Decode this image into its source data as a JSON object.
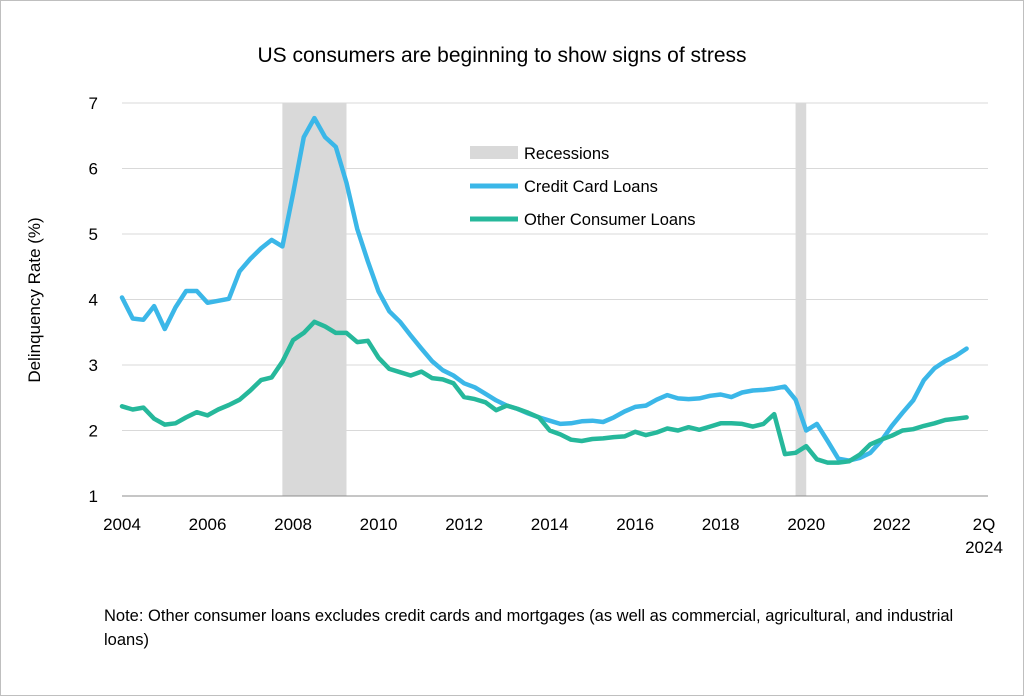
{
  "chart_data": {
    "type": "line",
    "title": "US consumers are beginning to show signs of stress",
    "ylabel": "Delinquency Rate (%)",
    "xlabel": "",
    "ylim": [
      1,
      7
    ],
    "xlim": [
      2004.0,
      2024.25
    ],
    "grid": "horizontal",
    "legend_position": "top-center",
    "yticks": [
      1,
      2,
      3,
      4,
      5,
      6,
      7
    ],
    "xticks": [
      {
        "label": "2004",
        "value": 2004
      },
      {
        "label": "2006",
        "value": 2006
      },
      {
        "label": "2008",
        "value": 2008
      },
      {
        "label": "2010",
        "value": 2010
      },
      {
        "label": "2012",
        "value": 2012
      },
      {
        "label": "2014",
        "value": 2014
      },
      {
        "label": "2016",
        "value": 2016
      },
      {
        "label": "2018",
        "value": 2018
      },
      {
        "label": "2020",
        "value": 2020
      },
      {
        "label": "2022",
        "value": 2022
      }
    ],
    "last_tick": {
      "line1": "2Q",
      "line2": "2024",
      "value": 2024.25
    },
    "recessions": {
      "name": "Recessions",
      "color": "#d9d9d9",
      "periods": [
        [
          2007.75,
          2009.25
        ],
        [
          2019.75,
          2020.0
        ]
      ]
    },
    "series": [
      {
        "name": "Credit Card Loans",
        "color": "#3bb7e8",
        "points": [
          [
            2004.0,
            4.03
          ],
          [
            2004.25,
            3.71
          ],
          [
            2004.5,
            3.69
          ],
          [
            2004.75,
            3.9
          ],
          [
            2005.0,
            3.55
          ],
          [
            2005.25,
            3.88
          ],
          [
            2005.5,
            4.13
          ],
          [
            2005.75,
            4.13
          ],
          [
            2006.0,
            3.95
          ],
          [
            2006.25,
            3.98
          ],
          [
            2006.5,
            4.01
          ],
          [
            2006.75,
            4.43
          ],
          [
            2007.0,
            4.62
          ],
          [
            2007.25,
            4.78
          ],
          [
            2007.5,
            4.91
          ],
          [
            2007.75,
            4.81
          ],
          [
            2008.0,
            5.62
          ],
          [
            2008.25,
            6.48
          ],
          [
            2008.5,
            6.77
          ],
          [
            2008.75,
            6.48
          ],
          [
            2009.0,
            6.33
          ],
          [
            2009.25,
            5.78
          ],
          [
            2009.5,
            5.08
          ],
          [
            2009.75,
            4.58
          ],
          [
            2010.0,
            4.12
          ],
          [
            2010.25,
            3.82
          ],
          [
            2010.5,
            3.66
          ],
          [
            2010.75,
            3.45
          ],
          [
            2011.0,
            3.25
          ],
          [
            2011.25,
            3.06
          ],
          [
            2011.5,
            2.92
          ],
          [
            2011.75,
            2.84
          ],
          [
            2012.0,
            2.72
          ],
          [
            2012.25,
            2.66
          ],
          [
            2012.5,
            2.56
          ],
          [
            2012.75,
            2.46
          ],
          [
            2013.0,
            2.38
          ],
          [
            2013.25,
            2.33
          ],
          [
            2013.5,
            2.26
          ],
          [
            2013.75,
            2.2
          ],
          [
            2014.0,
            2.15
          ],
          [
            2014.25,
            2.1
          ],
          [
            2014.5,
            2.11
          ],
          [
            2014.75,
            2.14
          ],
          [
            2015.0,
            2.15
          ],
          [
            2015.25,
            2.13
          ],
          [
            2015.5,
            2.2
          ],
          [
            2015.75,
            2.29
          ],
          [
            2016.0,
            2.36
          ],
          [
            2016.25,
            2.38
          ],
          [
            2016.5,
            2.47
          ],
          [
            2016.75,
            2.54
          ],
          [
            2017.0,
            2.49
          ],
          [
            2017.25,
            2.48
          ],
          [
            2017.5,
            2.49
          ],
          [
            2017.75,
            2.53
          ],
          [
            2018.0,
            2.55
          ],
          [
            2018.25,
            2.51
          ],
          [
            2018.5,
            2.58
          ],
          [
            2018.75,
            2.61
          ],
          [
            2019.0,
            2.62
          ],
          [
            2019.25,
            2.64
          ],
          [
            2019.5,
            2.67
          ],
          [
            2019.75,
            2.47
          ],
          [
            2020.0,
            2.0
          ],
          [
            2020.25,
            2.1
          ],
          [
            2020.5,
            1.84
          ],
          [
            2020.75,
            1.57
          ],
          [
            2021.0,
            1.54
          ],
          [
            2021.25,
            1.58
          ],
          [
            2021.5,
            1.66
          ],
          [
            2021.75,
            1.84
          ],
          [
            2022.0,
            2.07
          ],
          [
            2022.25,
            2.27
          ],
          [
            2022.5,
            2.46
          ],
          [
            2022.75,
            2.77
          ],
          [
            2023.0,
            2.95
          ],
          [
            2023.25,
            3.06
          ],
          [
            2023.5,
            3.14
          ],
          [
            2023.75,
            3.25
          ]
        ]
      },
      {
        "name": "Other Consumer Loans",
        "color": "#26b89b",
        "points": [
          [
            2004.0,
            2.37
          ],
          [
            2004.25,
            2.32
          ],
          [
            2004.5,
            2.35
          ],
          [
            2004.75,
            2.18
          ],
          [
            2005.0,
            2.09
          ],
          [
            2005.25,
            2.11
          ],
          [
            2005.5,
            2.2
          ],
          [
            2005.75,
            2.28
          ],
          [
            2006.0,
            2.23
          ],
          [
            2006.25,
            2.32
          ],
          [
            2006.5,
            2.39
          ],
          [
            2006.75,
            2.47
          ],
          [
            2007.0,
            2.61
          ],
          [
            2007.25,
            2.77
          ],
          [
            2007.5,
            2.81
          ],
          [
            2007.75,
            3.05
          ],
          [
            2008.0,
            3.38
          ],
          [
            2008.25,
            3.49
          ],
          [
            2008.5,
            3.66
          ],
          [
            2008.75,
            3.59
          ],
          [
            2009.0,
            3.49
          ],
          [
            2009.25,
            3.49
          ],
          [
            2009.5,
            3.35
          ],
          [
            2009.75,
            3.37
          ],
          [
            2010.0,
            3.11
          ],
          [
            2010.25,
            2.94
          ],
          [
            2010.5,
            2.89
          ],
          [
            2010.75,
            2.84
          ],
          [
            2011.0,
            2.9
          ],
          [
            2011.25,
            2.8
          ],
          [
            2011.5,
            2.78
          ],
          [
            2011.75,
            2.72
          ],
          [
            2012.0,
            2.51
          ],
          [
            2012.25,
            2.48
          ],
          [
            2012.5,
            2.43
          ],
          [
            2012.75,
            2.31
          ],
          [
            2013.0,
            2.38
          ],
          [
            2013.25,
            2.33
          ],
          [
            2013.5,
            2.27
          ],
          [
            2013.75,
            2.2
          ],
          [
            2014.0,
            2.0
          ],
          [
            2014.25,
            1.94
          ],
          [
            2014.5,
            1.86
          ],
          [
            2014.75,
            1.84
          ],
          [
            2015.0,
            1.87
          ],
          [
            2015.25,
            1.88
          ],
          [
            2015.5,
            1.9
          ],
          [
            2015.75,
            1.91
          ],
          [
            2016.0,
            1.98
          ],
          [
            2016.25,
            1.93
          ],
          [
            2016.5,
            1.97
          ],
          [
            2016.75,
            2.03
          ],
          [
            2017.0,
            2.0
          ],
          [
            2017.25,
            2.05
          ],
          [
            2017.5,
            2.01
          ],
          [
            2017.75,
            2.06
          ],
          [
            2018.0,
            2.11
          ],
          [
            2018.25,
            2.11
          ],
          [
            2018.5,
            2.1
          ],
          [
            2018.75,
            2.06
          ],
          [
            2019.0,
            2.1
          ],
          [
            2019.25,
            2.25
          ],
          [
            2019.5,
            1.64
          ],
          [
            2019.75,
            1.66
          ],
          [
            2020.0,
            1.76
          ],
          [
            2020.25,
            1.56
          ],
          [
            2020.5,
            1.51
          ],
          [
            2020.75,
            1.51
          ],
          [
            2021.0,
            1.53
          ],
          [
            2021.25,
            1.63
          ],
          [
            2021.5,
            1.79
          ],
          [
            2021.75,
            1.86
          ],
          [
            2022.0,
            1.92
          ],
          [
            2022.25,
            2.0
          ],
          [
            2022.5,
            2.02
          ],
          [
            2022.75,
            2.07
          ],
          [
            2023.0,
            2.11
          ],
          [
            2023.25,
            2.16
          ],
          [
            2023.5,
            2.18
          ],
          [
            2023.75,
            2.2
          ]
        ]
      }
    ]
  },
  "note": "Note: Other consumer loans excludes credit cards and mortgages (as well as commercial, agricultural, and industrial loans)"
}
